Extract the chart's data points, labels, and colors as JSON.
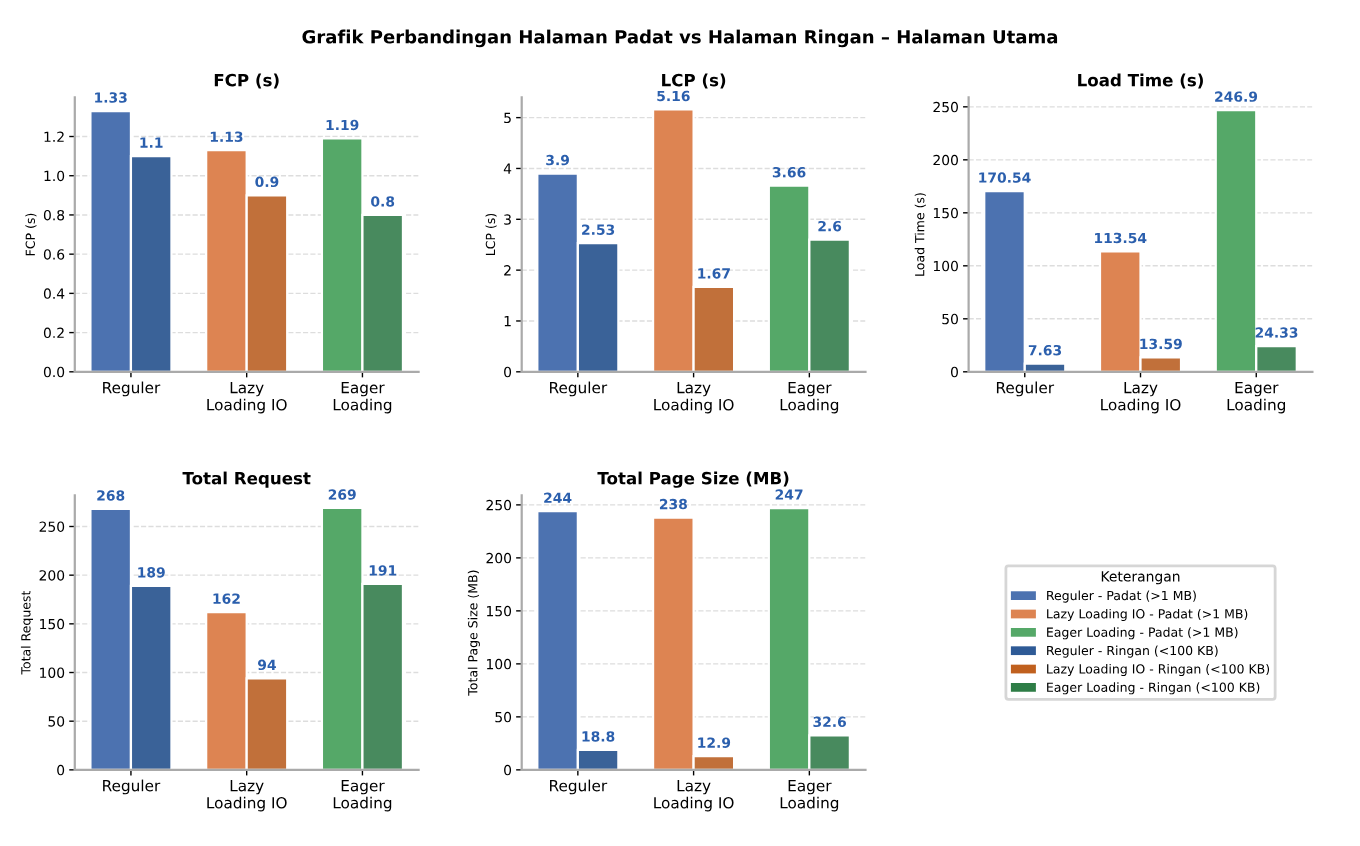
{
  "chart_data": [
    {
      "type": "bar",
      "title": "FCP (s)",
      "ylabel": "FCP (s)",
      "categories": [
        "Reguler",
        "Lazy\nLoading IO",
        "Eager\nLoading"
      ],
      "series": [
        {
          "colors": [
            "#4c72b0",
            "#dd8452",
            "#55a868"
          ],
          "values": [
            1.33,
            1.13,
            1.19
          ]
        },
        {
          "colors": [
            "#3a6298",
            "#c1703a",
            "#488a5e"
          ],
          "values": [
            1.1,
            0.9,
            0.8
          ]
        }
      ],
      "ylim": [
        0,
        1.4
      ],
      "yticks": [
        {
          "value": 0,
          "label": "0.0"
        },
        0.2,
        0.4,
        0.6,
        0.8,
        {
          "value": 1,
          "label": "1.0"
        },
        1.2
      ],
      "grid": "y",
      "data_labels": true
    },
    {
      "type": "bar",
      "title": "LCP (s)",
      "ylabel": "LCP (s)",
      "categories": [
        "Reguler",
        "Lazy\nLoading IO",
        "Eager\nLoading"
      ],
      "series": [
        {
          "colors": [
            "#4c72b0",
            "#dd8452",
            "#55a868"
          ],
          "values": [
            3.9,
            5.16,
            3.66
          ]
        },
        {
          "colors": [
            "#3a6298",
            "#c1703a",
            "#488a5e"
          ],
          "values": [
            2.53,
            1.67,
            2.6
          ]
        }
      ],
      "ylim": [
        0,
        5.4
      ],
      "yticks": [
        0,
        1,
        2,
        3,
        4,
        5
      ],
      "grid": "y",
      "data_labels": true
    },
    {
      "type": "bar",
      "title": "Load Time (s)",
      "ylabel": "Load Time (s)",
      "categories": [
        "Reguler",
        "Lazy\nLoading IO",
        "Eager\nLoading"
      ],
      "series": [
        {
          "colors": [
            "#4c72b0",
            "#dd8452",
            "#55a868"
          ],
          "values": [
            170.54,
            113.54,
            246.9
          ]
        },
        {
          "colors": [
            "#3a6298",
            "#c1703a",
            "#488a5e"
          ],
          "values": [
            7.63,
            13.59,
            24.33
          ]
        }
      ],
      "ylim": [
        0,
        259
      ],
      "yticks": [
        0,
        50,
        100,
        150,
        200,
        250
      ],
      "grid": "y",
      "data_labels": true
    },
    {
      "type": "bar",
      "title": "Total Request",
      "ylabel": "Total Request",
      "categories": [
        "Reguler",
        "Lazy\nLoading IO",
        "Eager\nLoading"
      ],
      "series": [
        {
          "colors": [
            "#4c72b0",
            "#dd8452",
            "#55a868"
          ],
          "values": [
            268,
            162,
            269
          ]
        },
        {
          "colors": [
            "#3a6298",
            "#c1703a",
            "#488a5e"
          ],
          "values": [
            189,
            94,
            191
          ]
        }
      ],
      "ylim": [
        0,
        282
      ],
      "yticks": [
        0,
        50,
        100,
        150,
        200,
        250
      ],
      "grid": "y",
      "data_labels": true
    },
    {
      "type": "bar",
      "title": "Total Page Size (MB)",
      "ylabel": "Total Page Size (MB)",
      "categories": [
        "Reguler",
        "Lazy\nLoading IO",
        "Eager\nLoading"
      ],
      "series": [
        {
          "colors": [
            "#4c72b0",
            "#dd8452",
            "#55a868"
          ],
          "values": [
            244,
            238,
            247
          ]
        },
        {
          "colors": [
            "#3a6298",
            "#c1703a",
            "#488a5e"
          ],
          "values": [
            18.8,
            12.9,
            32.6
          ]
        }
      ],
      "ylim": [
        0,
        259
      ],
      "yticks": [
        0,
        50,
        100,
        150,
        200,
        250
      ],
      "grid": "y",
      "data_labels": true
    },
    {
      "type": "other",
      "legend_title": "Keterangan",
      "legend": "center",
      "series": [
        {
          "name": "Reguler - Padat (>1 MB)",
          "color": "#4c72b0"
        },
        {
          "name": "Lazy Loading IO - Padat (>1 MB)",
          "color": "#dd8452"
        },
        {
          "name": "Eager Loading - Padat (>1 MB)",
          "color": "#55a868"
        },
        {
          "name": "Reguler - Ringan (<100 KB)",
          "color": "#2e5a96"
        },
        {
          "name": "Lazy Loading IO - Ringan (<100 KB)",
          "color": "#c0601e"
        },
        {
          "name": "Eager Loading - Ringan (<100 KB)",
          "color": "#2e7d46"
        }
      ],
      "title": "Grafik Perbandingan Halaman Padat vs Halaman Ringan – Halaman Utama"
    }
  ]
}
